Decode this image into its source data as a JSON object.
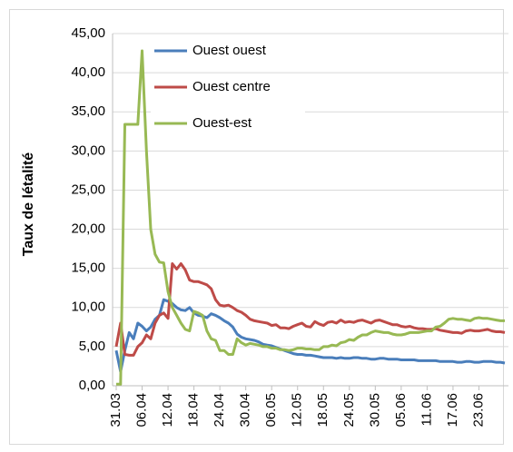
{
  "chart_data": {
    "type": "line",
    "y_label": "Taux de létalité",
    "categories": [
      "31.03",
      null,
      null,
      null,
      null,
      null,
      "06.04",
      null,
      null,
      null,
      null,
      null,
      "12.04",
      null,
      null,
      null,
      null,
      null,
      "18.04",
      null,
      null,
      null,
      null,
      null,
      "24.04",
      null,
      null,
      null,
      null,
      null,
      "30.04",
      null,
      null,
      null,
      null,
      null,
      "06.05",
      null,
      null,
      null,
      null,
      null,
      "12.05",
      null,
      null,
      null,
      null,
      null,
      "18.05",
      null,
      null,
      null,
      null,
      null,
      "24.05",
      null,
      null,
      null,
      null,
      null,
      "30.05",
      null,
      null,
      null,
      null,
      null,
      "05.06",
      null,
      null,
      null,
      null,
      null,
      "11.06",
      null,
      null,
      null,
      null,
      null,
      "17.06",
      null,
      null,
      null,
      null,
      null,
      "23.06",
      null,
      null,
      null,
      null,
      null,
      null
    ],
    "series": [
      {
        "name": "Ouest ouest",
        "color": "#4a7ebb",
        "values": [
          4.5,
          1.8,
          4.5,
          6.8,
          6.0,
          8,
          7.6,
          7,
          7.5,
          8.5,
          9,
          11,
          10.8,
          10.5,
          10,
          9.7,
          9.6,
          10,
          9.3,
          9.0,
          8.9,
          8.7,
          9.2,
          9.0,
          8.7,
          8.3,
          8.0,
          7.5,
          6.6,
          6.2,
          6.0,
          5.9,
          5.8,
          5.6,
          5.3,
          5.2,
          5.1,
          4.9,
          4.7,
          4.5,
          4.3,
          4.1,
          4.0,
          4.0,
          3.9,
          3.9,
          3.8,
          3.7,
          3.6,
          3.6,
          3.6,
          3.5,
          3.6,
          3.5,
          3.5,
          3.6,
          3.6,
          3.5,
          3.5,
          3.4,
          3.4,
          3.5,
          3.5,
          3.4,
          3.4,
          3.4,
          3.3,
          3.3,
          3.3,
          3.3,
          3.2,
          3.2,
          3.2,
          3.2,
          3.2,
          3.1,
          3.1,
          3.1,
          3.1,
          3.0,
          3.0,
          3.1,
          3.1,
          3.0,
          3.0,
          3.1,
          3.1,
          3.1,
          3.0,
          3.0,
          2.9
        ]
      },
      {
        "name": "Ouest centre",
        "color": "#be4b48",
        "values": [
          5,
          8.0,
          4,
          3.9,
          3.9,
          5,
          5.5,
          6.5,
          6,
          8,
          9,
          9.3,
          8.6,
          15.6,
          14.9,
          15.6,
          14.8,
          13.5,
          13.3,
          13.3,
          13.1,
          12.9,
          12.4,
          11,
          10.3,
          10.2,
          10.3,
          10,
          9.6,
          9.4,
          9,
          8.5,
          8.3,
          8.2,
          8.1,
          8.0,
          7.7,
          7.8,
          7.4,
          7.4,
          7.3,
          7.6,
          7.8,
          8,
          7.6,
          7.5,
          8.2,
          7.9,
          7.7,
          8.1,
          8.2,
          8,
          8.4,
          8.1,
          8.2,
          8.1,
          8.3,
          8.4,
          8.2,
          8.0,
          8.3,
          8.4,
          8.2,
          8.0,
          7.8,
          7.8,
          7.6,
          7.5,
          7.6,
          7.4,
          7.3,
          7.3,
          7.2,
          7.2,
          7.3,
          7.1,
          7.0,
          6.9,
          6.8,
          6.8,
          6.7,
          7.0,
          7.1,
          7.0,
          7.0,
          7.1,
          7.2,
          7.0,
          6.9,
          6.9,
          6.8
        ]
      },
      {
        "name": "Ouest-est",
        "color": "#98b954",
        "values": [
          0.2,
          0.2,
          33.4,
          33.4,
          33.4,
          33.4,
          42.8,
          30,
          20,
          16.8,
          15.8,
          15.7,
          12,
          10,
          9,
          8,
          7.2,
          7,
          9.5,
          9.3,
          9,
          7,
          6,
          5.8,
          4.5,
          4.5,
          4,
          4,
          6,
          5.5,
          5.2,
          5.4,
          5.3,
          5.2,
          5,
          5,
          4.8,
          4.8,
          4.6,
          4.6,
          4.5,
          4.6,
          4.8,
          4.8,
          4.7,
          4.7,
          4.6,
          4.6,
          5,
          5,
          5.2,
          5.1,
          5.5,
          5.6,
          5.9,
          5.8,
          6.2,
          6.5,
          6.5,
          6.8,
          7,
          6.9,
          6.8,
          6.8,
          6.6,
          6.5,
          6.5,
          6.6,
          6.8,
          6.8,
          6.8,
          6.9,
          7,
          7,
          7.5,
          7.6,
          8,
          8.5,
          8.6,
          8.5,
          8.5,
          8.4,
          8.3,
          8.6,
          8.7,
          8.6,
          8.6,
          8.5,
          8.4,
          8.3,
          8.3
        ]
      }
    ],
    "ylim": [
      0,
      45
    ],
    "yticks": [
      {
        "value": 0,
        "label": "0,00"
      },
      {
        "value": 5,
        "label": "5,00"
      },
      {
        "value": 10,
        "label": "10,00"
      },
      {
        "value": 15,
        "label": "15,00"
      },
      {
        "value": 20,
        "label": "20,00"
      },
      {
        "value": 25,
        "label": "25,00"
      },
      {
        "value": 30,
        "label": "30,00"
      },
      {
        "value": 35,
        "label": "35,00"
      },
      {
        "value": 40,
        "label": "40,00"
      },
      {
        "value": 45,
        "label": "45,00"
      }
    ],
    "grid": true,
    "legend": "top"
  }
}
